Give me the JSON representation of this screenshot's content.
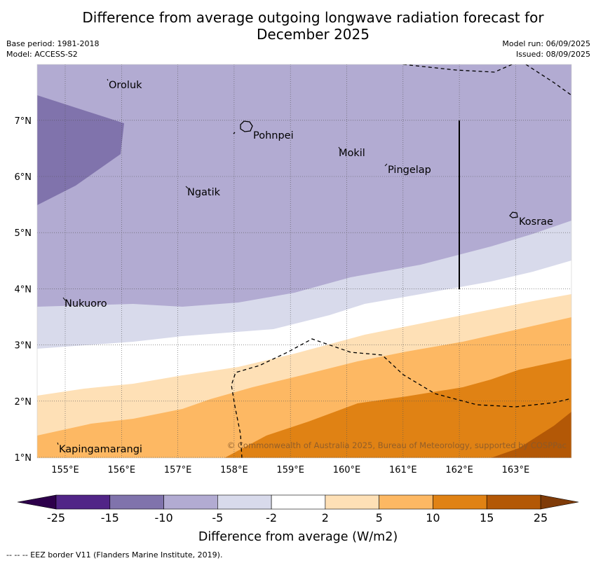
{
  "title_line1": "Difference from average outgoing longwave radiation forecast for",
  "title_line2": "December 2025",
  "meta_left": {
    "base_period": "Base period: 1981-2018",
    "model": "Model: ACCESS-S2"
  },
  "meta_right": {
    "model_run": "Model run: 06/09/2025",
    "issued": "Issued: 08/09/2025"
  },
  "lon_ticks": [
    "155°E",
    "156°E",
    "157°E",
    "158°E",
    "159°E",
    "160°E",
    "161°E",
    "162°E",
    "163°E"
  ],
  "lat_ticks": [
    "1°N",
    "2°N",
    "3°N",
    "4°N",
    "5°N",
    "6°N",
    "7°N"
  ],
  "places": [
    "Oroluk",
    "Pohnpei",
    "Mokil",
    "Pingelap",
    "Ngatik",
    "Kosrae",
    "Nukuoro",
    "Kapingamarangi"
  ],
  "copyright": "© Commonwealth of Australia 2025, Bureau of Meteorology, supported by COSPPac",
  "colorbar": {
    "ticks": [
      "-25",
      "-15",
      "-10",
      "-5",
      "-2",
      "2",
      "5",
      "10",
      "15",
      "25"
    ],
    "colors": [
      "#512587",
      "#8073ac",
      "#b2abd2",
      "#d8daeb",
      "#ffffff",
      "#fee0b6",
      "#fdb863",
      "#e08214",
      "#b35806"
    ],
    "extend_low_color": "#2d004b",
    "extend_high_color": "#7f3b08",
    "label": "Difference from average (W/m2)"
  },
  "footer": "-- -- -- EEZ border V11 (Flanders Marine Institute, 2019)."
}
